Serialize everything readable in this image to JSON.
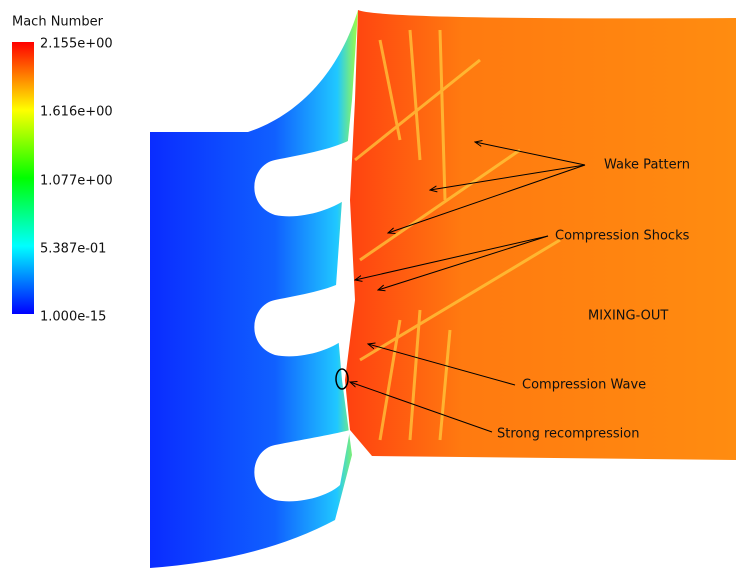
{
  "legend": {
    "title": "Mach Number",
    "ticks": [
      "2.155e+00",
      "1.616e+00",
      "1.077e+00",
      "5.387e-01",
      "1.000e-15"
    ]
  },
  "annotations": [
    "Wake Pattern",
    "Compression Shocks",
    "MIXING-OUT",
    "Compression Wave",
    "Strong recompression"
  ]
}
